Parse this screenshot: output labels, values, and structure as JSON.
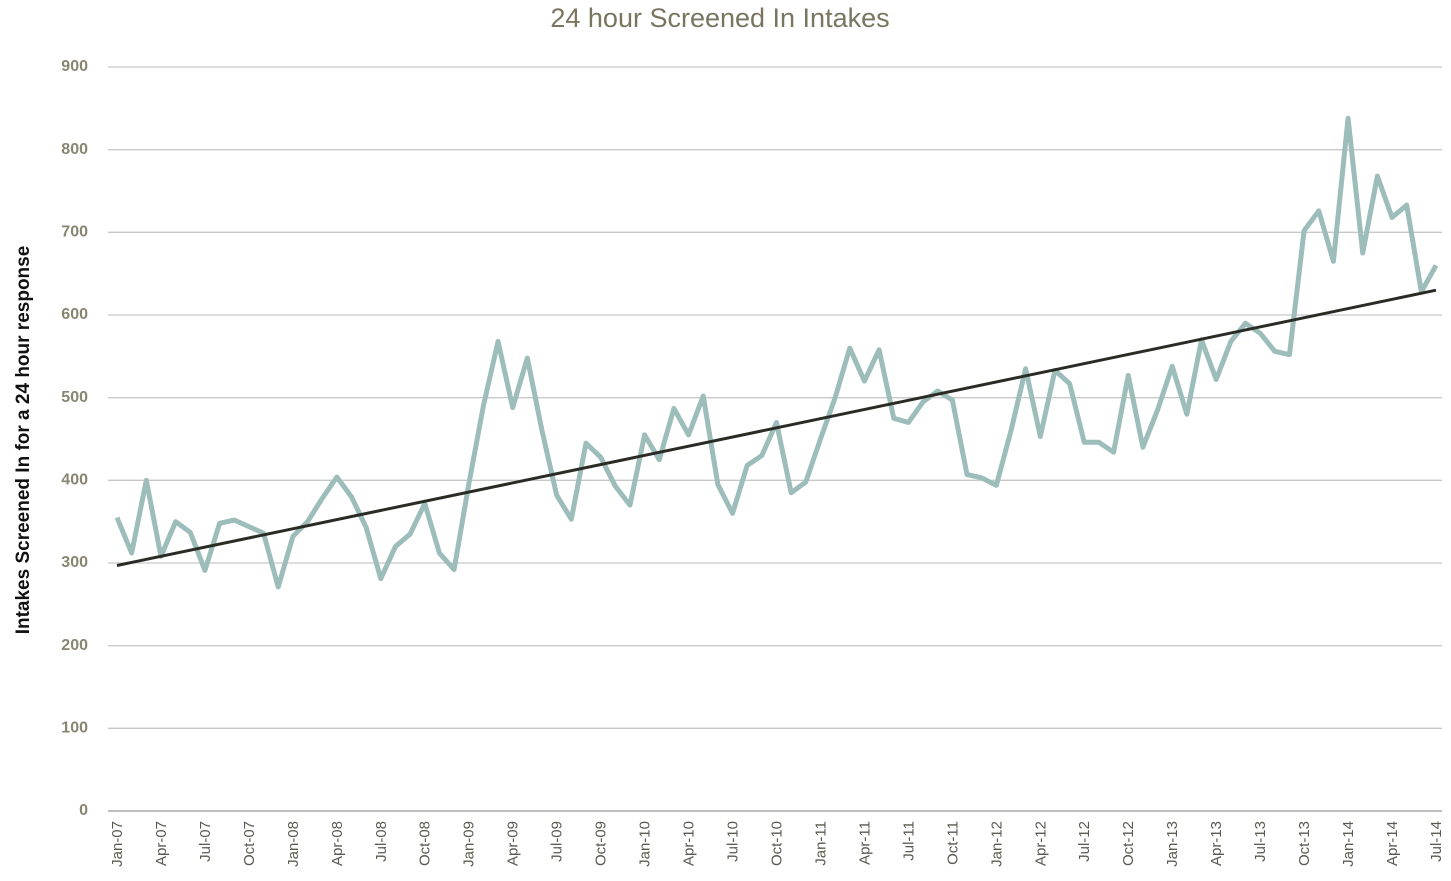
{
  "chart_data": {
    "type": "line",
    "title": "24 hour Screened In Intakes",
    "y_label": "Intakes Screened In for a 24 hour response",
    "categories": [
      "Jan-07",
      null,
      null,
      "Apr-07",
      null,
      null,
      "Jul-07",
      null,
      null,
      "Oct-07",
      null,
      null,
      "Jan-08",
      null,
      null,
      "Apr-08",
      null,
      null,
      "Jul-08",
      null,
      null,
      "Oct-08",
      null,
      null,
      "Jan-09",
      null,
      null,
      "Apr-09",
      null,
      null,
      "Jul-09",
      null,
      null,
      "Oct-09",
      null,
      null,
      "Jan-10",
      null,
      null,
      "Apr-10",
      null,
      null,
      "Jul-10",
      null,
      null,
      "Oct-10",
      null,
      null,
      "Jan-11",
      null,
      null,
      "Apr-11",
      null,
      null,
      "Jul-11",
      null,
      null,
      "Oct-11",
      null,
      null,
      "Jan-12",
      null,
      null,
      "Apr-12",
      null,
      null,
      "Jul-12",
      null,
      null,
      "Oct-12",
      null,
      null,
      "Jan-13",
      null,
      null,
      "Apr-13",
      null,
      null,
      "Jul-13",
      null,
      null,
      "Oct-13",
      null,
      null,
      "Jan-14",
      null,
      null,
      "Apr-14",
      null,
      null,
      "Jul-14"
    ],
    "series": [
      {
        "color": "#9dbdba",
        "values": [
          355,
          312,
          400,
          308,
          350,
          337,
          291,
          348,
          352,
          344,
          336,
          271,
          332,
          350,
          378,
          404,
          380,
          343,
          281,
          320,
          335,
          372,
          312,
          292,
          395,
          490,
          568,
          488,
          548,
          460,
          382,
          353,
          445,
          428,
          393,
          370,
          455,
          425,
          487,
          455,
          502,
          395,
          360,
          418,
          430,
          470,
          385,
          398,
          450,
          500,
          560,
          520,
          558,
          475,
          470,
          495,
          508,
          497,
          407,
          403,
          394,
          460,
          535,
          453,
          533,
          517,
          446,
          446,
          434,
          527,
          440,
          485,
          538,
          480,
          570,
          522,
          568,
          590,
          578,
          556,
          552,
          702,
          726,
          665,
          838,
          675,
          768,
          718,
          733,
          628,
          660
        ]
      }
    ],
    "trendline": {
      "start": 297,
      "end": 630,
      "color": "#2b2b25"
    },
    "ylim": [
      0,
      900
    ],
    "yticks": [
      0,
      100,
      200,
      300,
      400,
      500,
      600,
      700,
      800,
      900
    ],
    "grid": true
  }
}
